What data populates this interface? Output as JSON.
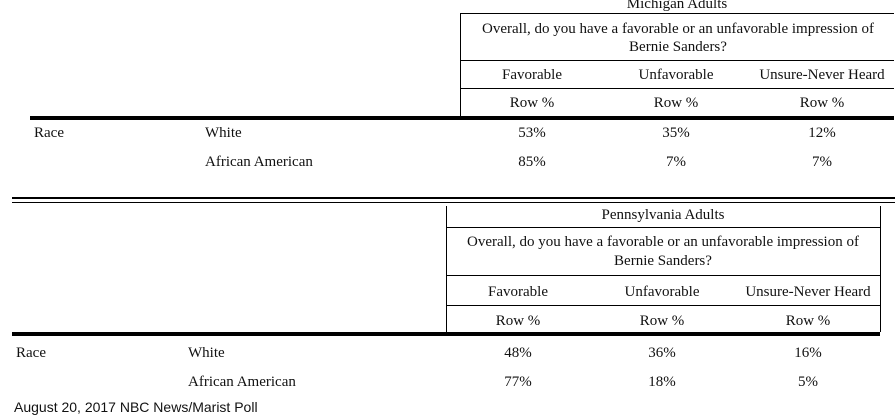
{
  "tables": [
    {
      "group": "Michigan Adults",
      "question": "Overall, do you have a favorable or an unfavorable impression of Bernie Sanders?",
      "columns": [
        "Favorable",
        "Unfavorable",
        "Unsure-Never Heard"
      ],
      "subheader": "Row %",
      "category": "Race",
      "rows": [
        {
          "label": "White",
          "values": [
            "53%",
            "35%",
            "12%"
          ]
        },
        {
          "label": "African American",
          "values": [
            "85%",
            "7%",
            "7%"
          ]
        }
      ]
    },
    {
      "group": "Pennsylvania Adults",
      "question": "Overall, do you have a favorable or an unfavorable impression of Bernie Sanders?",
      "columns": [
        "Favorable",
        "Unfavorable",
        "Unsure-Never Heard"
      ],
      "subheader": "Row %",
      "category": "Race",
      "rows": [
        {
          "label": "White",
          "values": [
            "48%",
            "36%",
            "16%"
          ]
        },
        {
          "label": "African American",
          "values": [
            "77%",
            "18%",
            "5%"
          ]
        }
      ]
    }
  ],
  "footer": "August 20, 2017 NBC News/Marist Poll"
}
